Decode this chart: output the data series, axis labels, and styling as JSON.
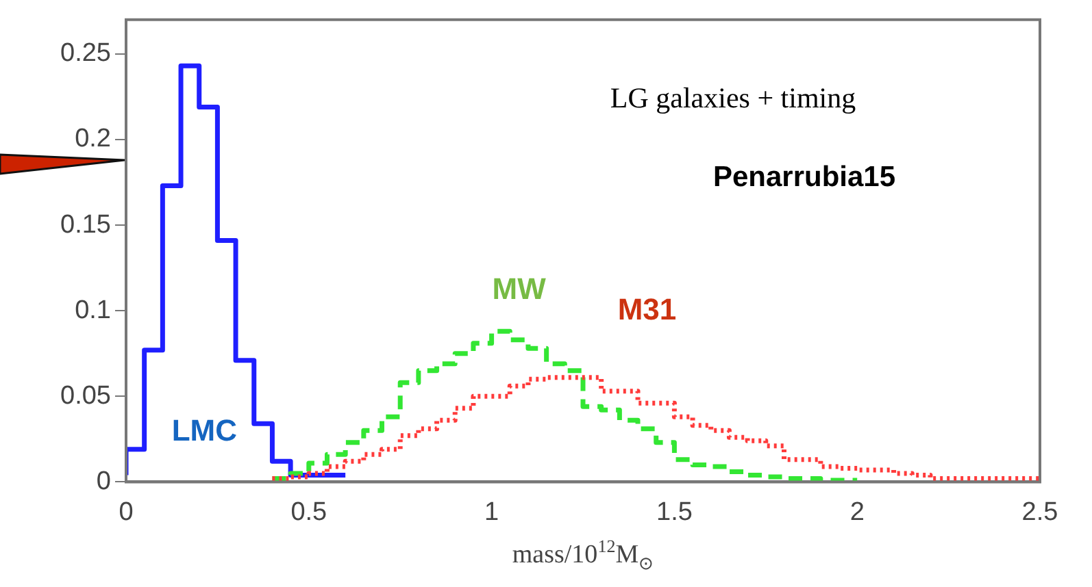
{
  "chart_data": {
    "type": "step",
    "xlabel": "mass/10$^{12}$M$_{⊙}$",
    "annotations": [
      "LG galaxies + timing",
      "Penarrubia15"
    ],
    "xlim": [
      0,
      2.5
    ],
    "ylim": [
      0,
      0.27
    ],
    "xticks": [
      0,
      0.5,
      1,
      1.5,
      2,
      2.5
    ],
    "yticks": [
      0,
      0.05,
      0.1,
      0.15,
      0.2,
      0.25
    ],
    "grid": false,
    "legend": false,
    "series": [
      {
        "name": "LMC",
        "color": "#1f1fff",
        "line_style": "solid",
        "x": [
          0,
          0.05,
          0.1,
          0.15,
          0.2,
          0.25,
          0.3,
          0.35,
          0.4,
          0.45,
          0.5,
          0.55,
          0.6
        ],
        "values": [
          0.004,
          0.019,
          0.077,
          0.173,
          0.243,
          0.219,
          0.141,
          0.071,
          0.034,
          0.012,
          0.004,
          0.004,
          0.004
        ]
      },
      {
        "name": "MW",
        "color": "#33e633",
        "line_style": "dashed",
        "x": [
          0.4,
          0.45,
          0.5,
          0.55,
          0.6,
          0.65,
          0.7,
          0.75,
          0.8,
          0.85,
          0.9,
          0.95,
          1.0,
          1.05,
          1.1,
          1.15,
          1.2,
          1.25,
          1.3,
          1.35,
          1.4,
          1.45,
          1.5,
          1.55,
          1.6,
          1.65,
          1.7,
          1.75,
          1.8,
          1.85,
          1.9,
          1.95,
          2.0
        ],
        "values": [
          0.002,
          0.002,
          0.005,
          0.011,
          0.016,
          0.023,
          0.03,
          0.038,
          0.058,
          0.065,
          0.069,
          0.075,
          0.081,
          0.088,
          0.083,
          0.078,
          0.069,
          0.065,
          0.044,
          0.042,
          0.036,
          0.031,
          0.023,
          0.013,
          0.01,
          0.009,
          0.006,
          0.004,
          0.003,
          0.002,
          0.002,
          0.001,
          0.001
        ]
      },
      {
        "name": "M31",
        "color": "#ff3b3b",
        "line_style": "dotted",
        "x": [
          0.4,
          0.45,
          0.5,
          0.55,
          0.6,
          0.65,
          0.7,
          0.75,
          0.8,
          0.85,
          0.9,
          0.95,
          1.0,
          1.05,
          1.1,
          1.15,
          1.2,
          1.25,
          1.3,
          1.35,
          1.4,
          1.45,
          1.5,
          1.55,
          1.6,
          1.65,
          1.7,
          1.75,
          1.8,
          1.85,
          1.9,
          1.95,
          2.0,
          2.05,
          2.1,
          2.15,
          2.2,
          2.25,
          2.3,
          2.35,
          2.4,
          2.45,
          2.5
        ],
        "values": [
          0.002,
          0.002,
          0.003,
          0.005,
          0.009,
          0.012,
          0.016,
          0.019,
          0.027,
          0.031,
          0.036,
          0.043,
          0.05,
          0.05,
          0.056,
          0.06,
          0.061,
          0.061,
          0.061,
          0.053,
          0.053,
          0.046,
          0.046,
          0.038,
          0.033,
          0.03,
          0.026,
          0.024,
          0.021,
          0.013,
          0.013,
          0.009,
          0.008,
          0.007,
          0.007,
          0.005,
          0.004,
          0.002,
          0.002,
          0.002,
          0.002,
          0.002,
          0.002
        ]
      }
    ]
  }
}
